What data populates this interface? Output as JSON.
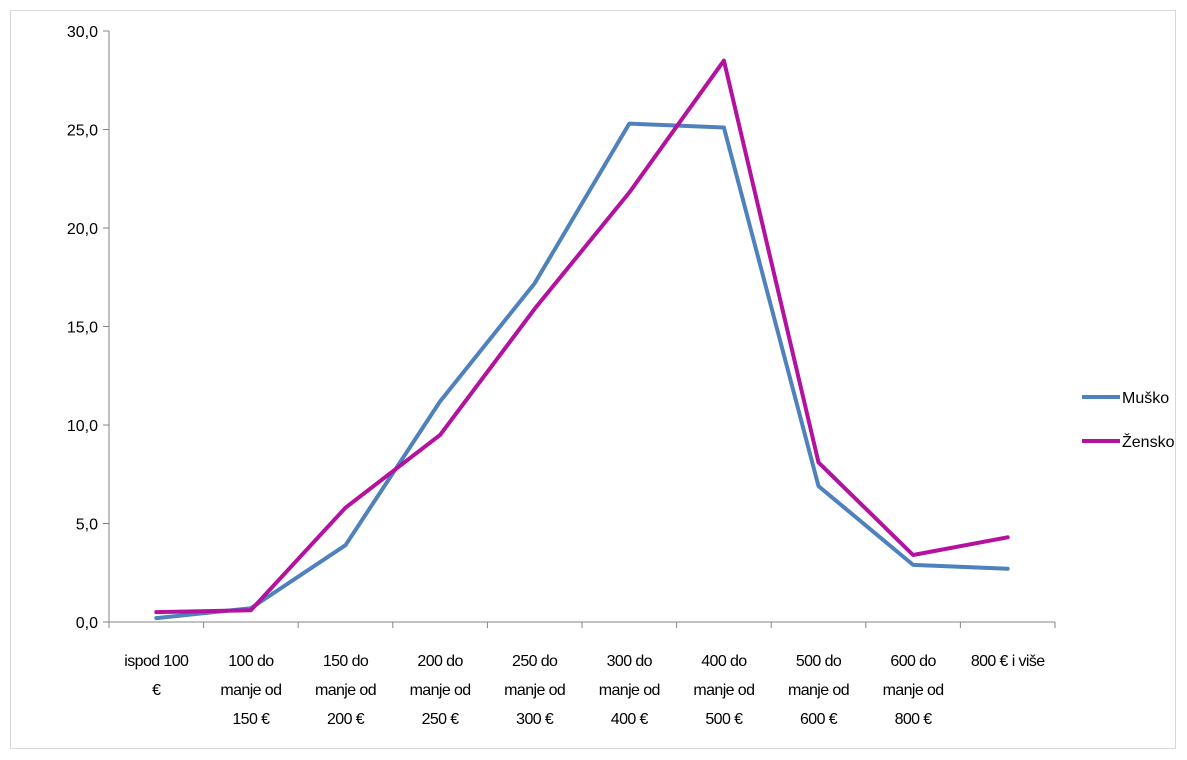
{
  "chart_data": {
    "type": "line",
    "title": "",
    "xlabel": "",
    "ylabel": "",
    "categories": [
      [
        "ispod  100",
        "€"
      ],
      [
        "100 do",
        "manje od",
        "150 €"
      ],
      [
        "150 do",
        "manje od",
        "200 €"
      ],
      [
        "200 do",
        "manje od",
        "250 €"
      ],
      [
        "250 do",
        "manje od",
        "300 €"
      ],
      [
        "300 do",
        "manje od",
        "400 €"
      ],
      [
        "400 do",
        "manje od",
        "500 €"
      ],
      [
        "500 do",
        "manje od",
        "600 €"
      ],
      [
        "600 do",
        "manje od",
        "800 €"
      ],
      [
        "800 € i više"
      ]
    ],
    "ylim": [
      0,
      30
    ],
    "yticks": [
      "0,0",
      "5,0",
      "10,0",
      "15,0",
      "20,0",
      "25,0",
      "30,0"
    ],
    "grid": false,
    "legend_position": "right",
    "series": [
      {
        "name": "Muško",
        "color": "#4f81bd",
        "values": [
          0.2,
          0.7,
          3.9,
          11.2,
          17.2,
          25.3,
          25.1,
          6.9,
          2.9,
          2.7
        ]
      },
      {
        "name": "Žensko",
        "color": "#b3119e",
        "values": [
          0.5,
          0.6,
          5.8,
          9.5,
          15.9,
          21.8,
          28.5,
          8.1,
          3.4,
          4.3
        ]
      }
    ]
  }
}
